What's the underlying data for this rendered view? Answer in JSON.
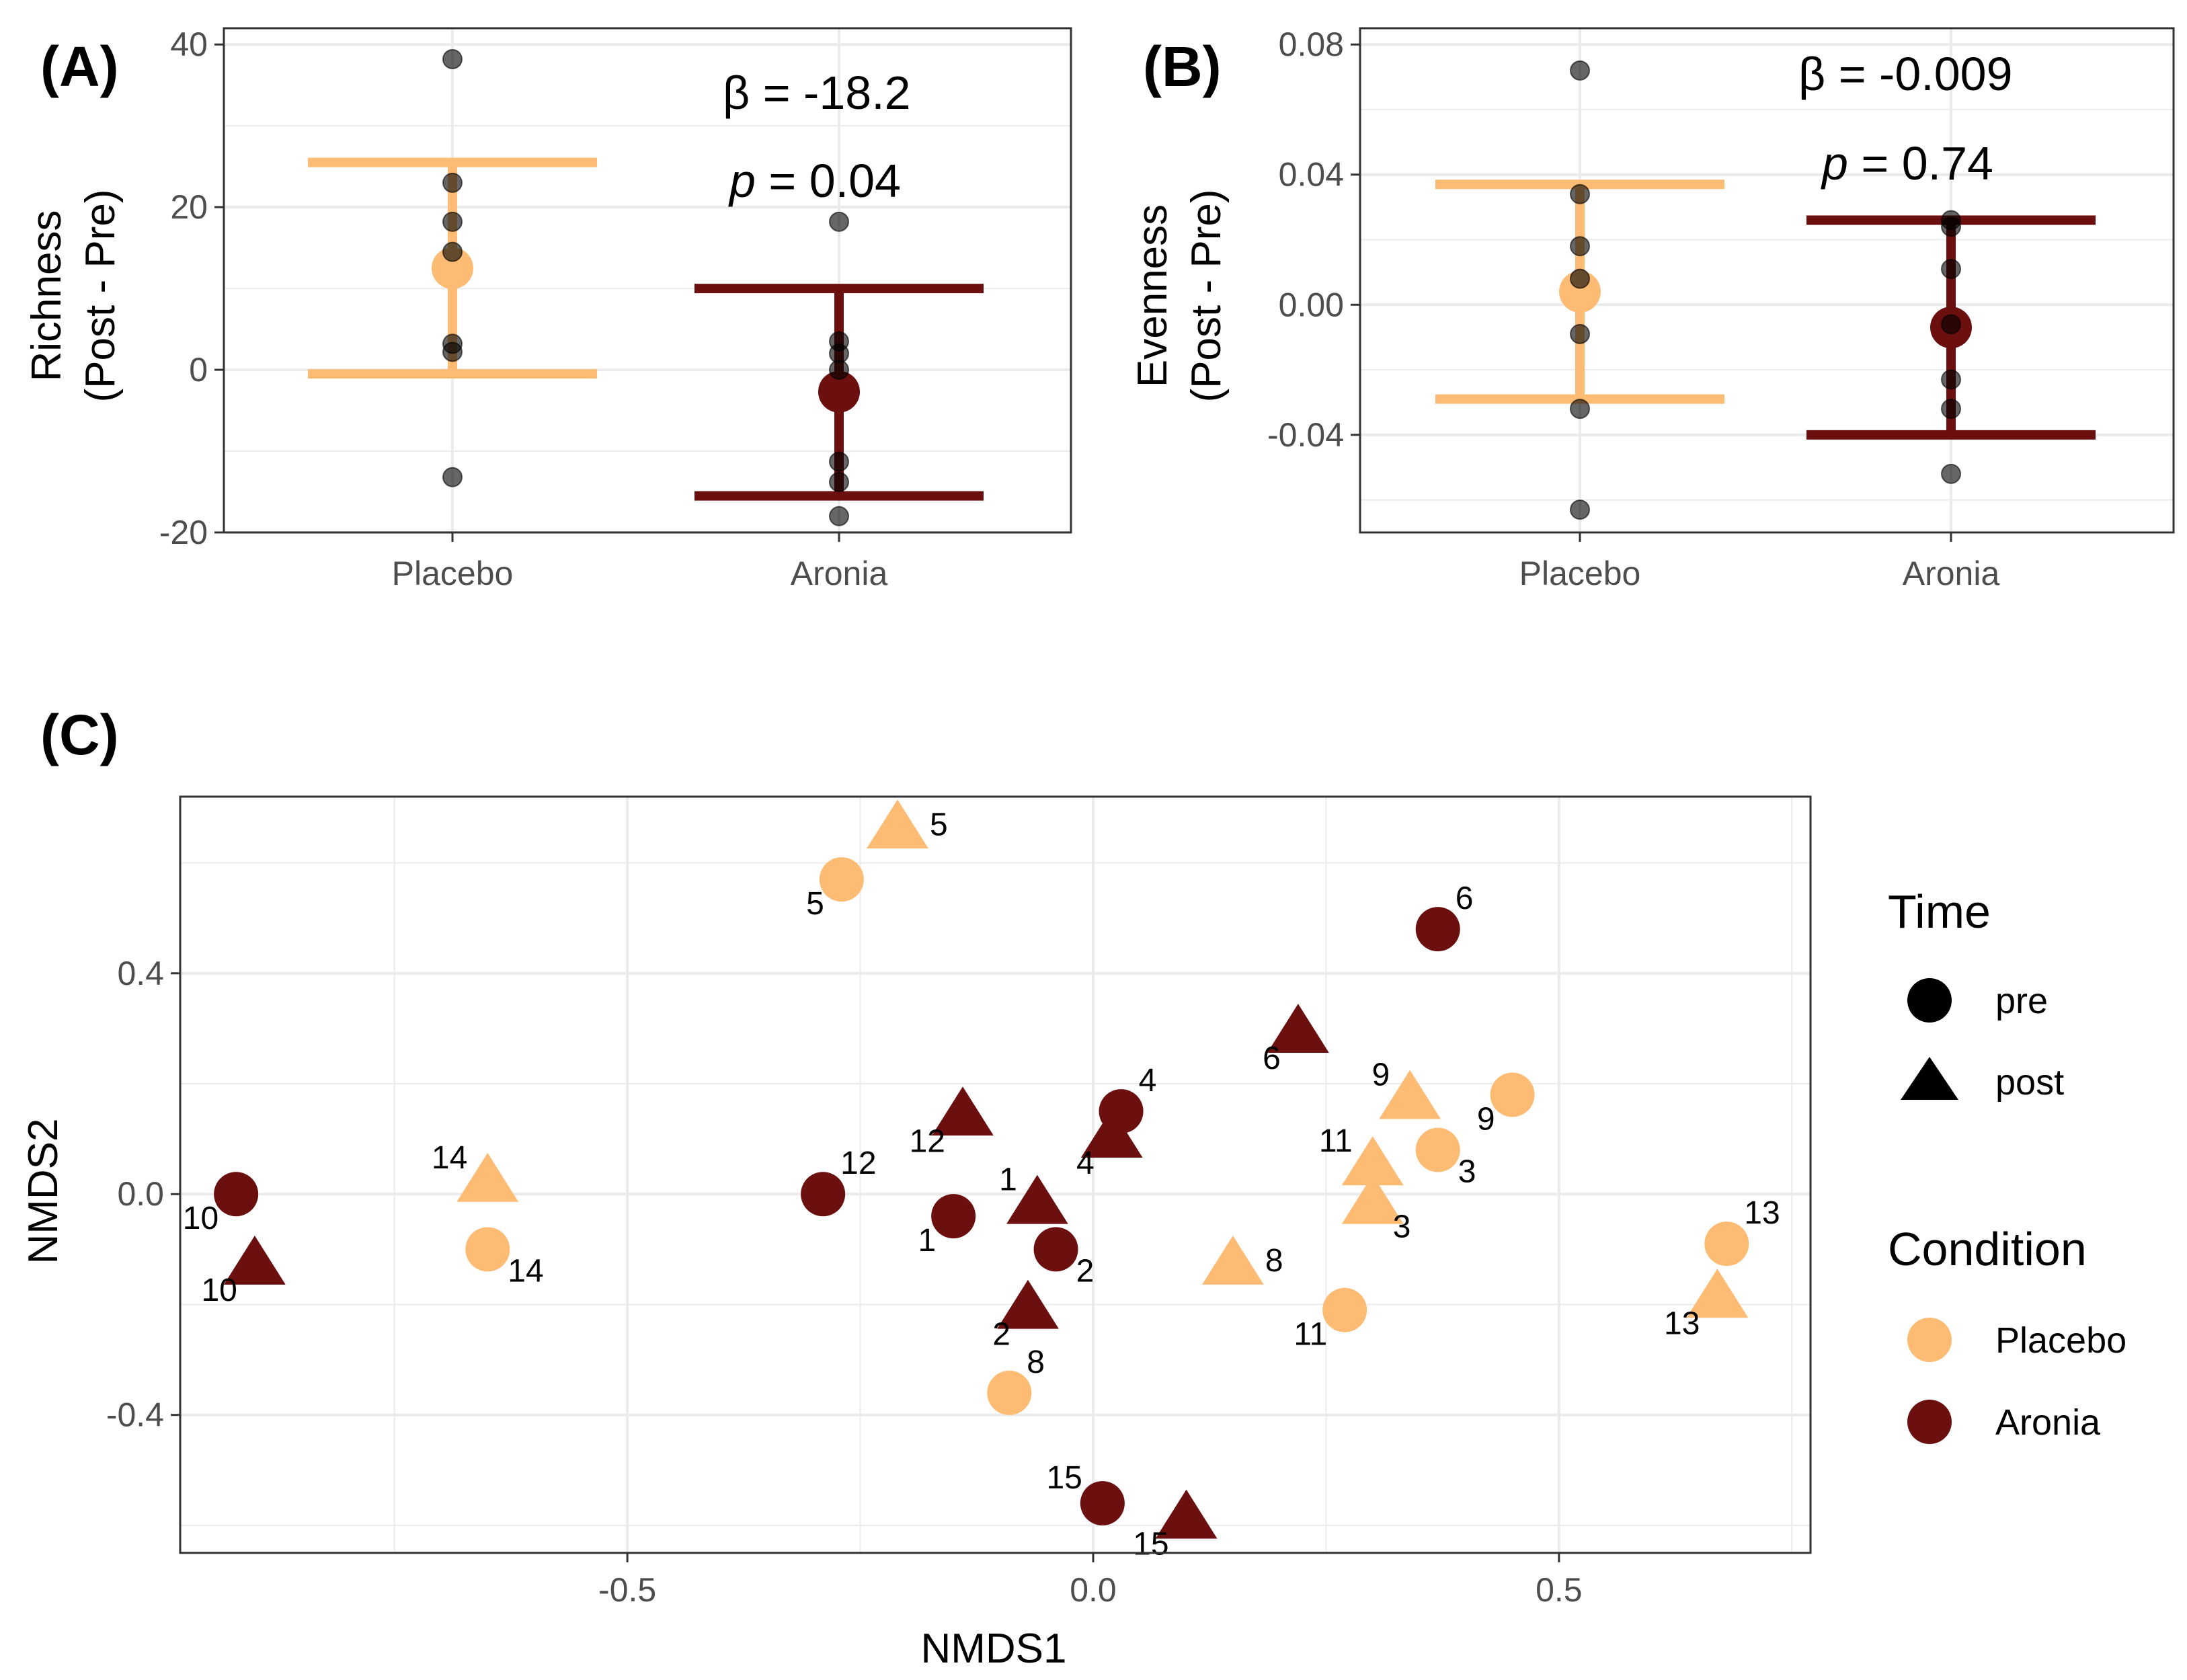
{
  "colors": {
    "placebo": "#FDBB73",
    "aronia": "#6B0F0F",
    "point": "#000000",
    "grid": "#EBEBEB",
    "panel_border": "#333333"
  },
  "chart_data": [
    {
      "id": "A",
      "type": "scatter",
      "panel_label": "(A)",
      "ylabel_line1": "Richness",
      "ylabel_line2": "(Post - Pre)",
      "categories": [
        "Placebo",
        "Aronia"
      ],
      "ylim": [
        -20,
        42
      ],
      "yticks": [
        40,
        20,
        0,
        -20
      ],
      "ytick_labels": [
        "40",
        "20",
        "0",
        "-20"
      ],
      "groups": [
        {
          "name": "Placebo",
          "mean": 12.5,
          "ci_low": -0.5,
          "ci_high": 25.5,
          "points": [
            38.2,
            23.0,
            18.2,
            14.5,
            3.2,
            2.2,
            -13.2
          ]
        },
        {
          "name": "Aronia",
          "mean": -2.7,
          "ci_low": -15.5,
          "ci_high": 10.0,
          "points": [
            18.2,
            3.5,
            2.0,
            0.0,
            -11.3,
            -13.8,
            -18.0
          ]
        }
      ],
      "beta_symbol": "β",
      "beta_text": " = -18.2",
      "p_symbol": "p",
      "p_text": " = 0.04"
    },
    {
      "id": "B",
      "type": "scatter",
      "panel_label": "(B)",
      "ylabel_line1": "Evenness",
      "ylabel_line2": "(Post - Pre)",
      "categories": [
        "Placebo",
        "Aronia"
      ],
      "ylim": [
        -0.07,
        0.085
      ],
      "yticks": [
        0.08,
        0.04,
        0.0,
        -0.04
      ],
      "ytick_labels": [
        "0.08",
        "0.04",
        "0.00",
        "-0.04"
      ],
      "groups": [
        {
          "name": "Placebo",
          "mean": 0.004,
          "ci_low": -0.029,
          "ci_high": 0.037,
          "points": [
            0.072,
            0.034,
            0.018,
            0.008,
            -0.009,
            -0.032,
            -0.063
          ]
        },
        {
          "name": "Aronia",
          "mean": -0.007,
          "ci_low": -0.04,
          "ci_high": 0.026,
          "points": [
            0.026,
            0.024,
            0.011,
            -0.006,
            -0.023,
            -0.032,
            -0.052
          ]
        }
      ],
      "beta_symbol": "β",
      "beta_text": " = -0.009",
      "p_symbol": "p",
      "p_text": " = 0.74"
    },
    {
      "id": "C",
      "type": "scatter",
      "panel_label": "(C)",
      "xlabel": "NMDS1",
      "ylabel": "NMDS2",
      "xlim": [
        -0.98,
        0.77
      ],
      "ylim": [
        -0.65,
        0.72
      ],
      "xticks": [
        -0.5,
        0.0,
        0.5
      ],
      "xtick_labels": [
        "-0.5",
        "0.0",
        "0.5"
      ],
      "yticks": [
        0.4,
        0.0,
        -0.4
      ],
      "ytick_labels": [
        "0.4",
        "0.0",
        "-0.4"
      ],
      "points": [
        {
          "label": "5",
          "x": -0.27,
          "y": 0.57,
          "time": "pre",
          "condition": "Placebo",
          "label_pos": "bottom-left"
        },
        {
          "label": "5",
          "x": -0.21,
          "y": 0.66,
          "time": "post",
          "condition": "Placebo",
          "label_pos": "right"
        },
        {
          "label": "14",
          "x": -0.65,
          "y": -0.1,
          "time": "pre",
          "condition": "Placebo",
          "label_pos": "bottom-right"
        },
        {
          "label": "14",
          "x": -0.65,
          "y": 0.02,
          "time": "post",
          "condition": "Placebo",
          "label_pos": "top-left"
        },
        {
          "label": "8",
          "x": -0.09,
          "y": -0.36,
          "time": "pre",
          "condition": "Placebo",
          "label_pos": "top-right"
        },
        {
          "label": "8",
          "x": 0.15,
          "y": -0.13,
          "time": "post",
          "condition": "Placebo",
          "label_pos": "right"
        },
        {
          "label": "11",
          "x": 0.27,
          "y": -0.21,
          "time": "pre",
          "condition": "Placebo",
          "label_pos": "bottom-left"
        },
        {
          "label": "11",
          "x": 0.3,
          "y": 0.05,
          "time": "post",
          "condition": "Placebo",
          "label_pos": "top-left"
        },
        {
          "label": "3",
          "x": 0.37,
          "y": 0.08,
          "time": "pre",
          "condition": "Placebo",
          "label_pos": "bottom-right"
        },
        {
          "label": "3",
          "x": 0.3,
          "y": -0.02,
          "time": "post",
          "condition": "Placebo",
          "label_pos": "bottom-right"
        },
        {
          "label": "9",
          "x": 0.45,
          "y": 0.18,
          "time": "pre",
          "condition": "Placebo",
          "label_pos": "bottom-left"
        },
        {
          "label": "9",
          "x": 0.34,
          "y": 0.17,
          "time": "post",
          "condition": "Placebo",
          "label_pos": "top-left"
        },
        {
          "label": "13",
          "x": 0.68,
          "y": -0.09,
          "time": "pre",
          "condition": "Placebo",
          "label_pos": "top-right"
        },
        {
          "label": "13",
          "x": 0.67,
          "y": -0.19,
          "time": "post",
          "condition": "Placebo",
          "label_pos": "bottom-left"
        },
        {
          "label": "10",
          "x": -0.92,
          "y": 0.0,
          "time": "pre",
          "condition": "Aronia",
          "label_pos": "bottom-left"
        },
        {
          "label": "10",
          "x": -0.9,
          "y": -0.13,
          "time": "post",
          "condition": "Aronia",
          "label_pos": "bottom-left"
        },
        {
          "label": "12",
          "x": -0.29,
          "y": 0.0,
          "time": "pre",
          "condition": "Aronia",
          "label_pos": "top-right"
        },
        {
          "label": "12",
          "x": -0.14,
          "y": 0.14,
          "time": "post",
          "condition": "Aronia",
          "label_pos": "bottom-left"
        },
        {
          "label": "1",
          "x": -0.15,
          "y": -0.04,
          "time": "pre",
          "condition": "Aronia",
          "label_pos": "bottom-left"
        },
        {
          "label": "1",
          "x": -0.06,
          "y": -0.02,
          "time": "post",
          "condition": "Aronia",
          "label_pos": "top-left"
        },
        {
          "label": "2",
          "x": -0.04,
          "y": -0.1,
          "time": "pre",
          "condition": "Aronia",
          "label_pos": "bottom-right"
        },
        {
          "label": "2",
          "x": -0.07,
          "y": -0.21,
          "time": "post",
          "condition": "Aronia",
          "label_pos": "bottom-left"
        },
        {
          "label": "4",
          "x": 0.03,
          "y": 0.15,
          "time": "pre",
          "condition": "Aronia",
          "label_pos": "top-right"
        },
        {
          "label": "4",
          "x": 0.02,
          "y": 0.1,
          "time": "post",
          "condition": "Aronia",
          "label_pos": "bottom-left"
        },
        {
          "label": "6",
          "x": 0.37,
          "y": 0.48,
          "time": "pre",
          "condition": "Aronia",
          "label_pos": "top-right"
        },
        {
          "label": "6",
          "x": 0.22,
          "y": 0.29,
          "time": "post",
          "condition": "Aronia",
          "label_pos": "bottom-left"
        },
        {
          "label": "15",
          "x": 0.01,
          "y": -0.56,
          "time": "pre",
          "condition": "Aronia",
          "label_pos": "top-left"
        },
        {
          "label": "15",
          "x": 0.1,
          "y": -0.59,
          "time": "post",
          "condition": "Aronia",
          "label_pos": "bottom-left"
        }
      ],
      "legend": {
        "time_title": "Time",
        "time_items": [
          {
            "label": "pre",
            "shape": "circle"
          },
          {
            "label": "post",
            "shape": "triangle"
          }
        ],
        "condition_title": "Condition",
        "condition_items": [
          {
            "label": "Placebo",
            "color_key": "placebo"
          },
          {
            "label": "Aronia",
            "color_key": "aronia"
          }
        ]
      }
    }
  ]
}
